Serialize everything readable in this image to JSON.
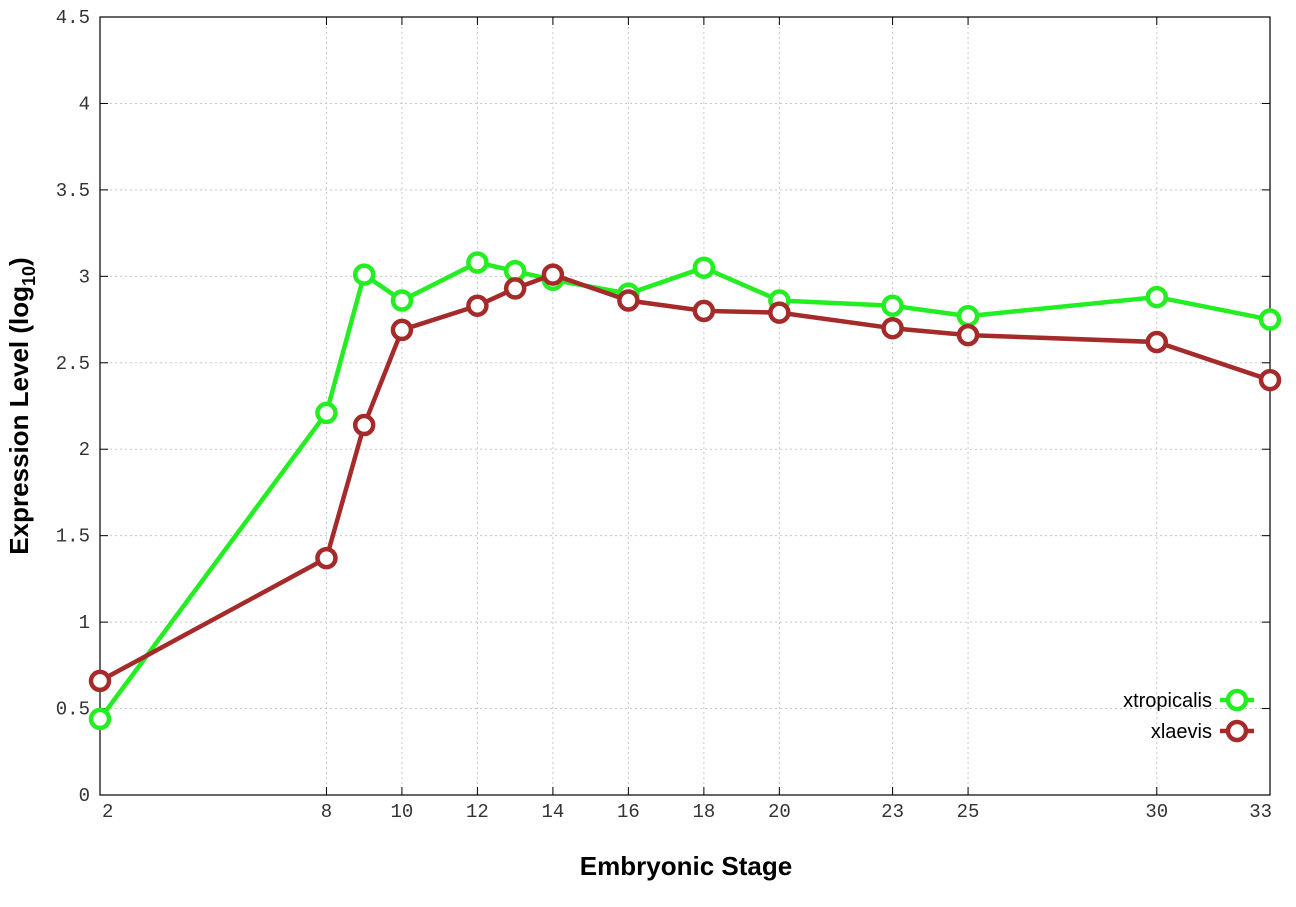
{
  "chart_data": {
    "type": "line",
    "title": "",
    "xlabel": "Embryonic Stage",
    "ylabel_main": "Expression Level (log",
    "ylabel_sub": "10",
    "ylabel_end": ")",
    "xlim": [
      2,
      33
    ],
    "ylim": [
      0,
      4.5
    ],
    "x_ticks": [
      2,
      8,
      10,
      12,
      14,
      16,
      18,
      20,
      23,
      25,
      30,
      33
    ],
    "x_tick_labels": [
      "2",
      "8",
      "10",
      "12",
      "14",
      "16",
      "18",
      "20",
      "23",
      "25",
      "30",
      "33"
    ],
    "y_ticks": [
      0,
      0.5,
      1,
      1.5,
      2,
      2.5,
      3,
      3.5,
      4,
      4.5
    ],
    "y_tick_labels": [
      "0",
      "0.5",
      "1",
      "1.5",
      "2",
      "2.5",
      "3",
      "3.5",
      "4",
      "4.5"
    ],
    "grid": true,
    "legend_position": "bottom-right",
    "series": [
      {
        "name": "xtropicalis",
        "color": "#22ee22",
        "x": [
          2,
          8,
          9,
          10,
          12,
          13,
          14,
          16,
          18,
          20,
          23,
          25,
          30,
          33
        ],
        "y": [
          0.44,
          2.21,
          3.01,
          2.86,
          3.08,
          3.03,
          2.98,
          2.9,
          3.05,
          2.86,
          2.83,
          2.77,
          2.88,
          2.75
        ]
      },
      {
        "name": "xlaevis",
        "color": "#a52a2a",
        "x": [
          2,
          8,
          9,
          10,
          12,
          13,
          14,
          16,
          18,
          20,
          23,
          25,
          30,
          33
        ],
        "y": [
          0.66,
          1.37,
          2.14,
          2.69,
          2.83,
          2.93,
          3.01,
          2.86,
          2.8,
          2.79,
          2.7,
          2.66,
          2.62,
          2.4
        ]
      }
    ]
  }
}
